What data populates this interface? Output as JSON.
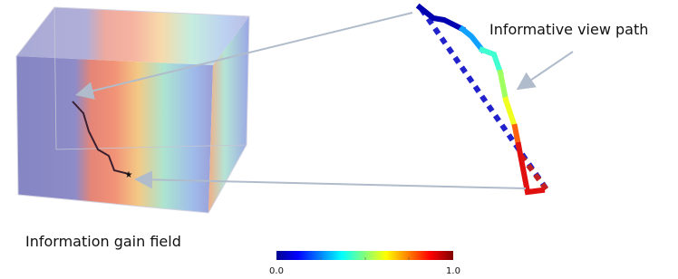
{
  "labels": {
    "path": "Informative view path",
    "field": "Information gain field"
  },
  "colorbar": {
    "min_label": "0.0",
    "max_label": "1.0"
  }
}
